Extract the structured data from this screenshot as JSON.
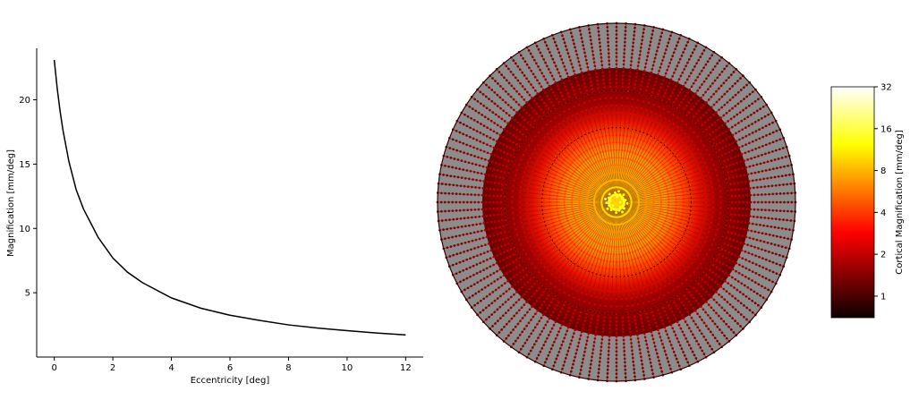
{
  "chart_data": [
    {
      "type": "line",
      "title": "",
      "xlabel": "Eccentricity [deg]",
      "ylabel": "Magnification [mm/deg]",
      "xlim": [
        -0.6,
        12.6
      ],
      "ylim": [
        0,
        24
      ],
      "xticks": [
        0,
        2,
        4,
        6,
        8,
        10,
        12
      ],
      "yticks": [
        5,
        10,
        15,
        20
      ],
      "grid": false,
      "series": [
        {
          "color": "#000000",
          "x": [
            0,
            0.1,
            0.2,
            0.3,
            0.5,
            0.75,
            1,
            1.5,
            2,
            2.5,
            3,
            4,
            5,
            6,
            7,
            8,
            9,
            10,
            11,
            12
          ],
          "y": [
            23.1,
            20.9,
            19.1,
            17.6,
            15.2,
            13.0,
            11.5,
            9.3,
            7.7,
            6.6,
            5.8,
            4.6,
            3.8,
            3.25,
            2.85,
            2.5,
            2.25,
            2.05,
            1.87,
            1.72
          ]
        }
      ]
    },
    {
      "type": "scatter",
      "title": "",
      "description_layout": "polar",
      "eccentricity_rings": [
        0.7,
        1.5,
        2.5,
        3.7,
        5,
        7,
        9.5,
        12
      ],
      "dashed_rings": [
        5,
        7.5
      ],
      "n_spokes": 120,
      "values_follow": "magnification",
      "outer_fill_color": "#8c8c8c",
      "colorbar": {
        "label": "Cortical Magnification [mm/deg]",
        "ticks": [
          "32",
          "16",
          "8",
          "4",
          "2",
          "1"
        ],
        "tick_values": [
          32,
          16,
          8,
          4,
          2,
          1
        ],
        "scale": "log",
        "range": [
          0.7,
          32
        ],
        "colormap": "hot"
      }
    }
  ]
}
